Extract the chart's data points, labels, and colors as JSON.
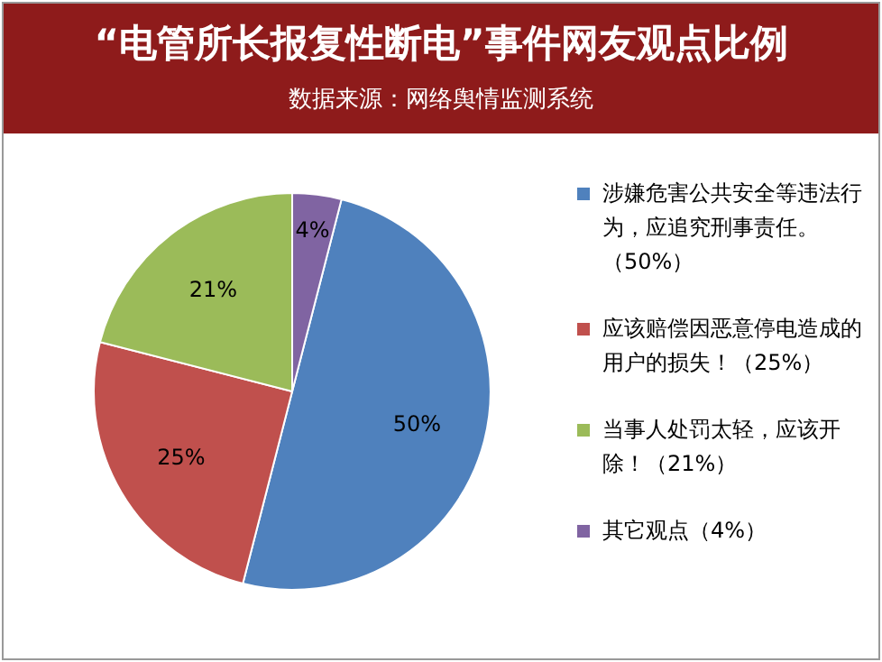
{
  "chart_data": {
    "type": "pie",
    "title": "“电管所长报复性断电”事件网友观点比例",
    "subtitle": "数据来源：网络舆情监测系统",
    "categories": [
      "涉嫌危害公共安全等违法行为，应追究刑事责任。（50%）",
      "应该赔偿因恶意停电造成的用户的损失！（25%）",
      "当事人处罚太轻，应该开除！（21%）",
      "其它观点（4%）"
    ],
    "values": [
      50,
      25,
      21,
      4
    ],
    "colors": [
      "#4f81bd",
      "#c0504d",
      "#9bbb59",
      "#8064a2"
    ],
    "value_labels": [
      "50%",
      "25%",
      "21%",
      "4%"
    ],
    "legend": "right"
  }
}
